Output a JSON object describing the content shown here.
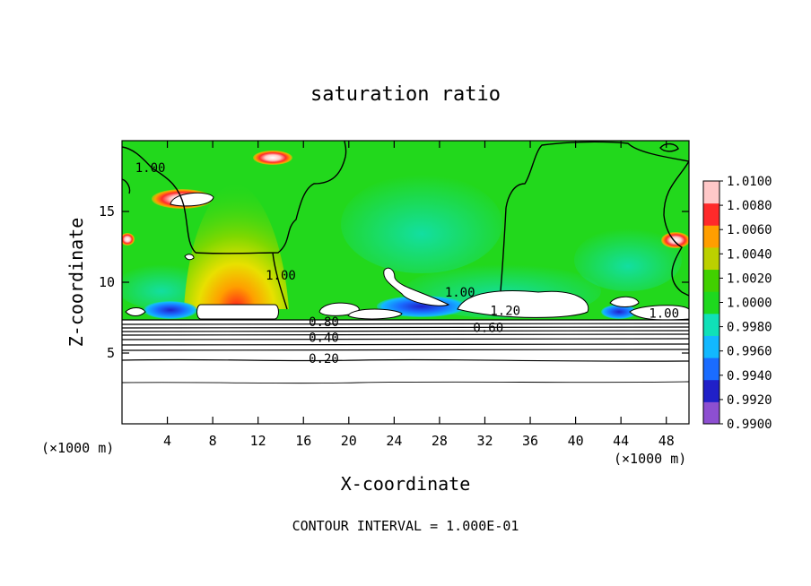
{
  "chart_data": {
    "type": "heatmap",
    "title": "saturation ratio",
    "xlabel": "X-coordinate",
    "ylabel": "Z-coordinate",
    "x_unit": "(×1000 m)",
    "z_unit": "(×1000 m)",
    "xlim": [
      0,
      50
    ],
    "ylim": [
      0,
      20
    ],
    "x_ticks": [
      4,
      8,
      12,
      16,
      20,
      24,
      28,
      32,
      36,
      40,
      44,
      48
    ],
    "y_ticks": [
      5,
      10,
      15
    ],
    "colorbar": {
      "values": [
        0.99,
        0.992,
        0.994,
        0.996,
        0.998,
        1.0,
        1.002,
        1.004,
        1.006,
        1.008,
        1.01
      ],
      "labels": [
        "0.9900",
        "0.9920",
        "0.9940",
        "0.9960",
        "0.9980",
        "1.0000",
        "1.0020",
        "1.0040",
        "1.0060",
        "1.0080",
        "1.0100"
      ],
      "colors": [
        "#8d4fd1",
        "#2020c8",
        "#1a6cff",
        "#12b8ff",
        "#10e0b8",
        "#1ed81e",
        "#41d000",
        "#bcd000",
        "#ff9e00",
        "#ff2a2a",
        "#ffc8c8"
      ]
    },
    "contour_labels": [
      {
        "text": "1.00",
        "x": 2.5,
        "z": 17.8
      },
      {
        "text": "1.00",
        "x": 14.0,
        "z": 10.2
      },
      {
        "text": "1.00",
        "x": 29.8,
        "z": 9.0
      },
      {
        "text": "1.20",
        "x": 33.8,
        "z": 7.7
      },
      {
        "text": "0.60",
        "x": 32.3,
        "z": 6.5
      },
      {
        "text": "0.80",
        "x": 17.8,
        "z": 6.9
      },
      {
        "text": "0.40",
        "x": 17.8,
        "z": 5.8
      },
      {
        "text": "0.20",
        "x": 17.8,
        "z": 4.3
      },
      {
        "text": "1.00",
        "x": 47.8,
        "z": 7.5
      }
    ],
    "contour_interval_text": "CONTOUR INTERVAL = 1.000E-01"
  }
}
